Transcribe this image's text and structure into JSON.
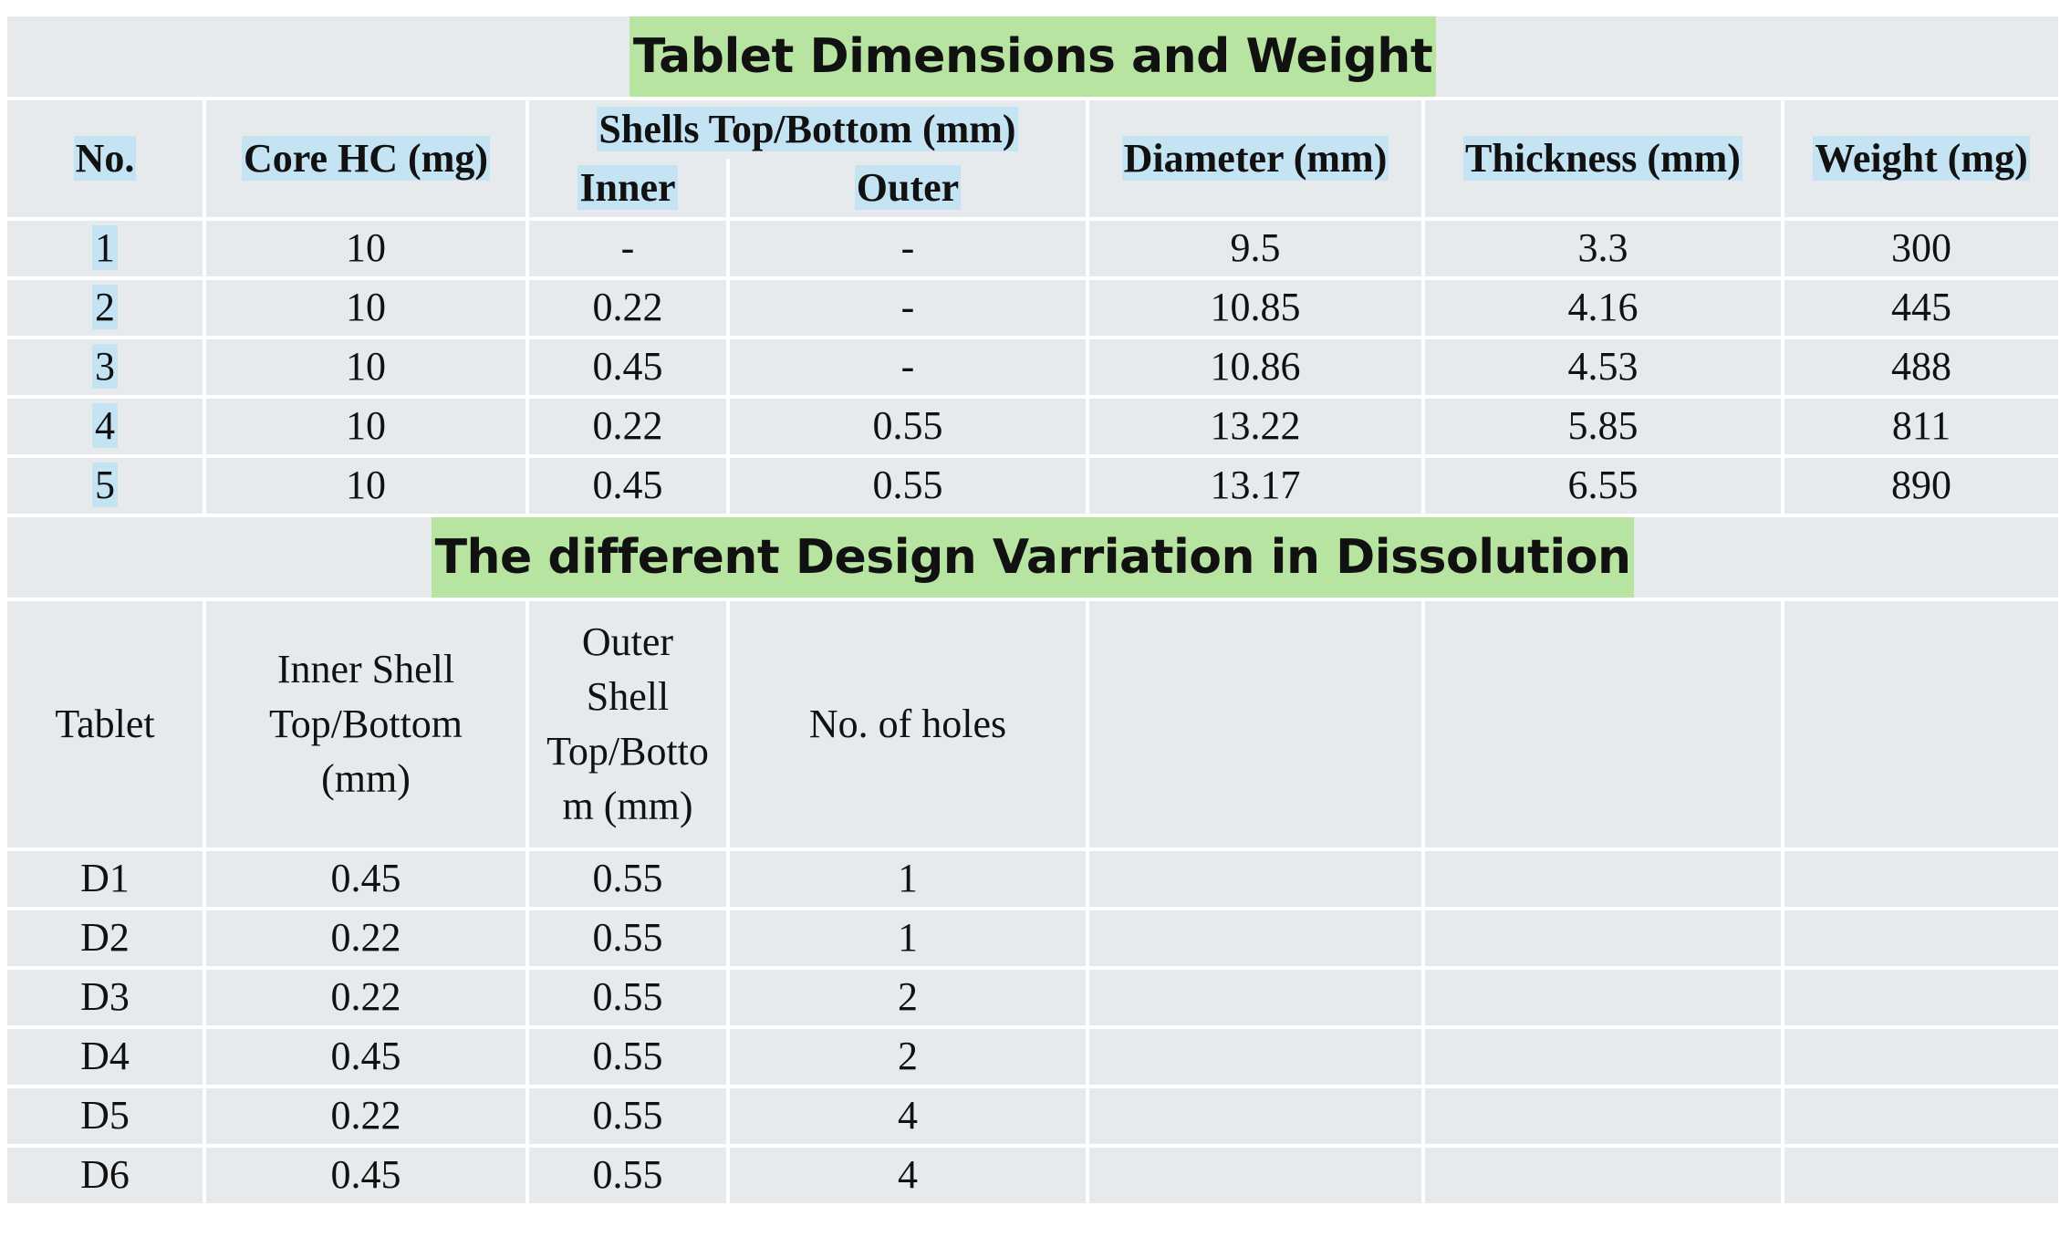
{
  "table1": {
    "title": "Tablet Dimensions and Weight",
    "headers": {
      "no": "No.",
      "core": "Core HC (mg)",
      "shells": "Shells Top/Bottom (mm)",
      "inner": "Inner",
      "outer": "Outer",
      "diameter": "Diameter (mm)",
      "thickness": "Thickness (mm)",
      "weight": "Weight (mg)"
    },
    "rows": [
      {
        "no": "1",
        "core": "10",
        "inner": "-",
        "outer": "-",
        "diameter": "9.5",
        "thickness": "3.3",
        "weight": "300"
      },
      {
        "no": "2",
        "core": "10",
        "inner": "0.22",
        "outer": "-",
        "diameter": "10.85",
        "thickness": "4.16",
        "weight": "445"
      },
      {
        "no": "3",
        "core": "10",
        "inner": "0.45",
        "outer": "-",
        "diameter": "10.86",
        "thickness": "4.53",
        "weight": "488"
      },
      {
        "no": "4",
        "core": "10",
        "inner": "0.22",
        "outer": "0.55",
        "diameter": "13.22",
        "thickness": "5.85",
        "weight": "811"
      },
      {
        "no": "5",
        "core": "10",
        "inner": "0.45",
        "outer": "0.55",
        "diameter": "13.17",
        "thickness": "6.55",
        "weight": "890"
      }
    ]
  },
  "table2": {
    "title": "The different Design Varriation in Dissolution",
    "headers": {
      "tablet": "Tablet",
      "inner_lines": [
        "Inner Shell",
        "Top/Bottom",
        "(mm)"
      ],
      "outer_lines": [
        "Outer",
        "Shell",
        "Top/Botto",
        "m (mm)"
      ],
      "holes": "No. of holes"
    },
    "rows": [
      {
        "tablet": "D1",
        "inner": "0.45",
        "outer": "0.55",
        "holes": "1"
      },
      {
        "tablet": "D2",
        "inner": "0.22",
        "outer": "0.55",
        "holes": "1"
      },
      {
        "tablet": "D3",
        "inner": "0.22",
        "outer": "0.55",
        "holes": "2"
      },
      {
        "tablet": "D4",
        "inner": "0.45",
        "outer": "0.55",
        "holes": "2"
      },
      {
        "tablet": "D5",
        "inner": "0.22",
        "outer": "0.55",
        "holes": "4"
      },
      {
        "tablet": "D6",
        "inner": "0.45",
        "outer": "0.55",
        "holes": "4"
      }
    ]
  }
}
